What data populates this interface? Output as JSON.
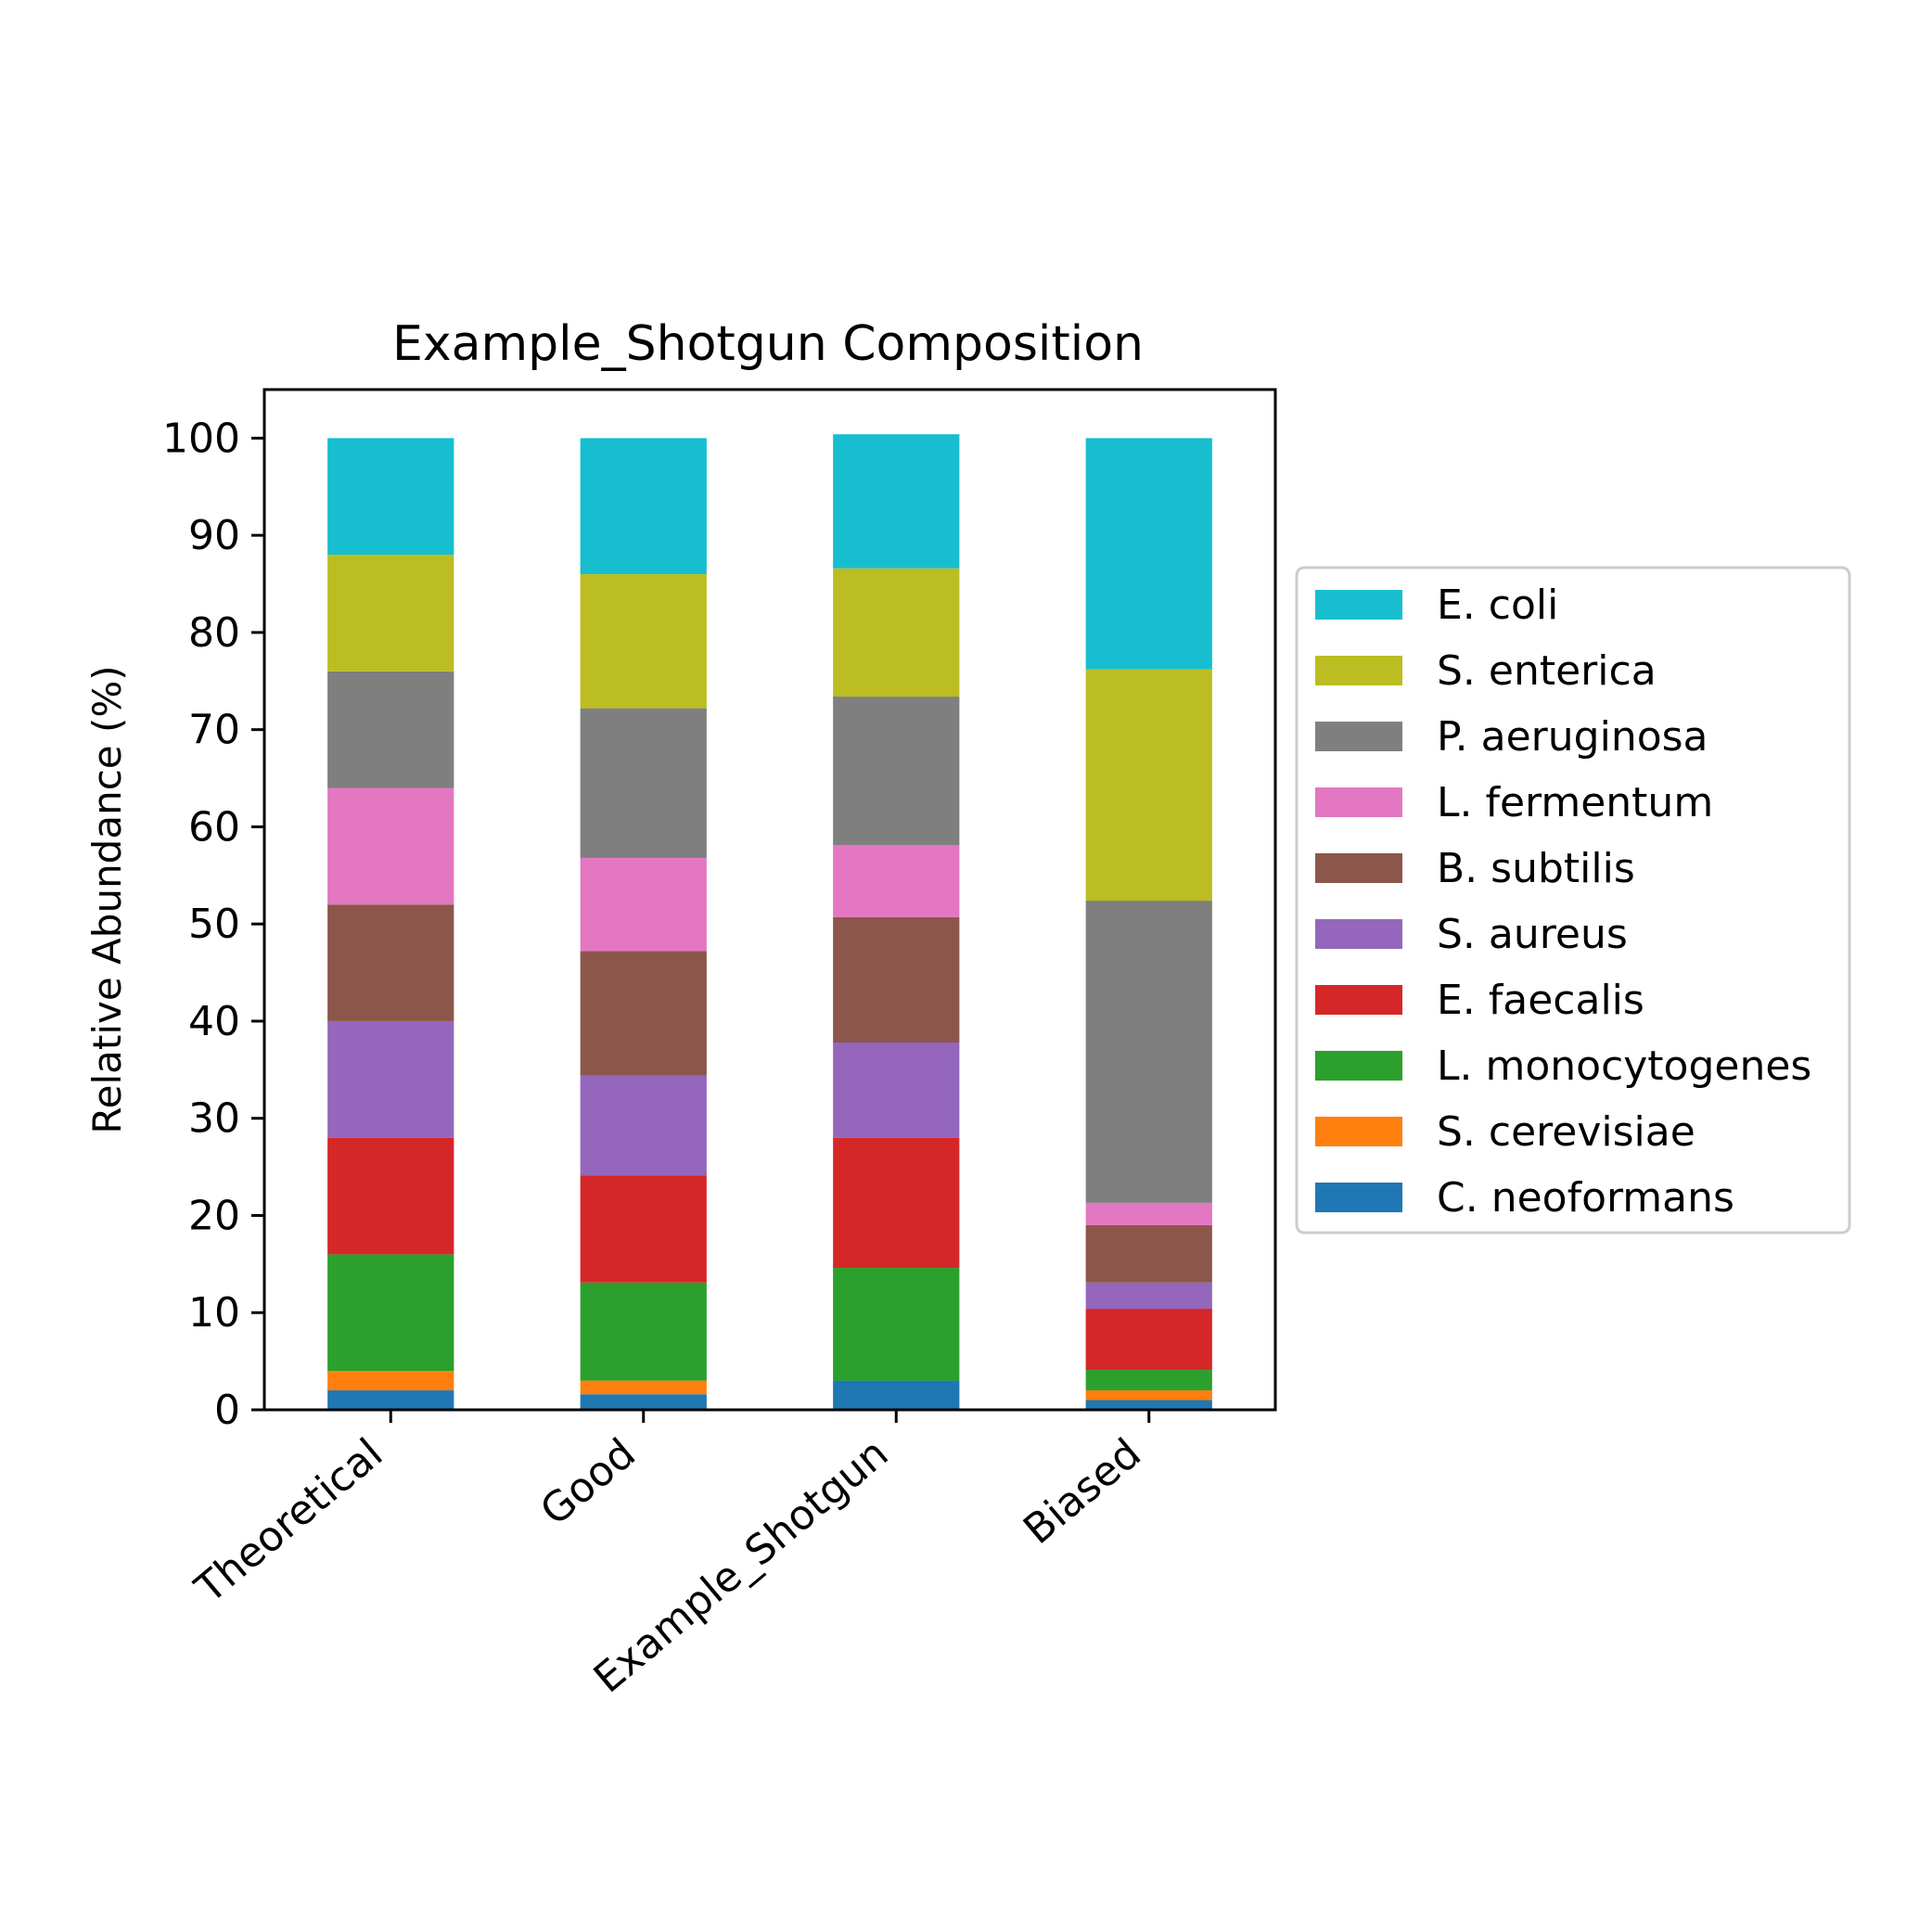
{
  "chart_data": {
    "type": "bar",
    "stacked": true,
    "title": "Example_Shotgun Composition",
    "xlabel": "",
    "ylabel": "Relative Abundance (%)",
    "ylim": [
      0,
      105
    ],
    "yticks": [
      0,
      10,
      20,
      30,
      40,
      50,
      60,
      70,
      80,
      90,
      100
    ],
    "grid": false,
    "legend_position": "right",
    "categories": [
      "Theoretical",
      "Good",
      "Example_Shotgun",
      "Biased"
    ],
    "series": [
      {
        "name": "C. neoformans",
        "color": "#1f77b4",
        "values": [
          2,
          1.6,
          3,
          1
        ]
      },
      {
        "name": "S. cerevisiae",
        "color": "#ff7f0e",
        "values": [
          2,
          1.4,
          0,
          1
        ]
      },
      {
        "name": "L. monocytogenes",
        "color": "#2ca02c",
        "values": [
          12,
          10.1,
          11.6,
          2.1
        ]
      },
      {
        "name": "E. faecalis",
        "color": "#d62728",
        "values": [
          12,
          11,
          13.4,
          6.3
        ]
      },
      {
        "name": "S. aureus",
        "color": "#9467bd",
        "values": [
          12,
          10.3,
          9.8,
          2.7
        ]
      },
      {
        "name": "B. subtilis",
        "color": "#8c564b",
        "values": [
          12,
          12.8,
          12.9,
          5.9
        ]
      },
      {
        "name": "L. fermentum",
        "color": "#e377c2",
        "values": [
          12,
          9.6,
          7.4,
          2.3
        ]
      },
      {
        "name": "P. aeruginosa",
        "color": "#7f7f7f",
        "values": [
          12,
          15.4,
          15.3,
          31.1
        ]
      },
      {
        "name": "S. enterica",
        "color": "#bcbd22",
        "values": [
          12,
          13.8,
          13.2,
          23.8
        ]
      },
      {
        "name": "E. coli",
        "color": "#17becf",
        "values": [
          12,
          14,
          13.8,
          23.8
        ]
      }
    ]
  }
}
